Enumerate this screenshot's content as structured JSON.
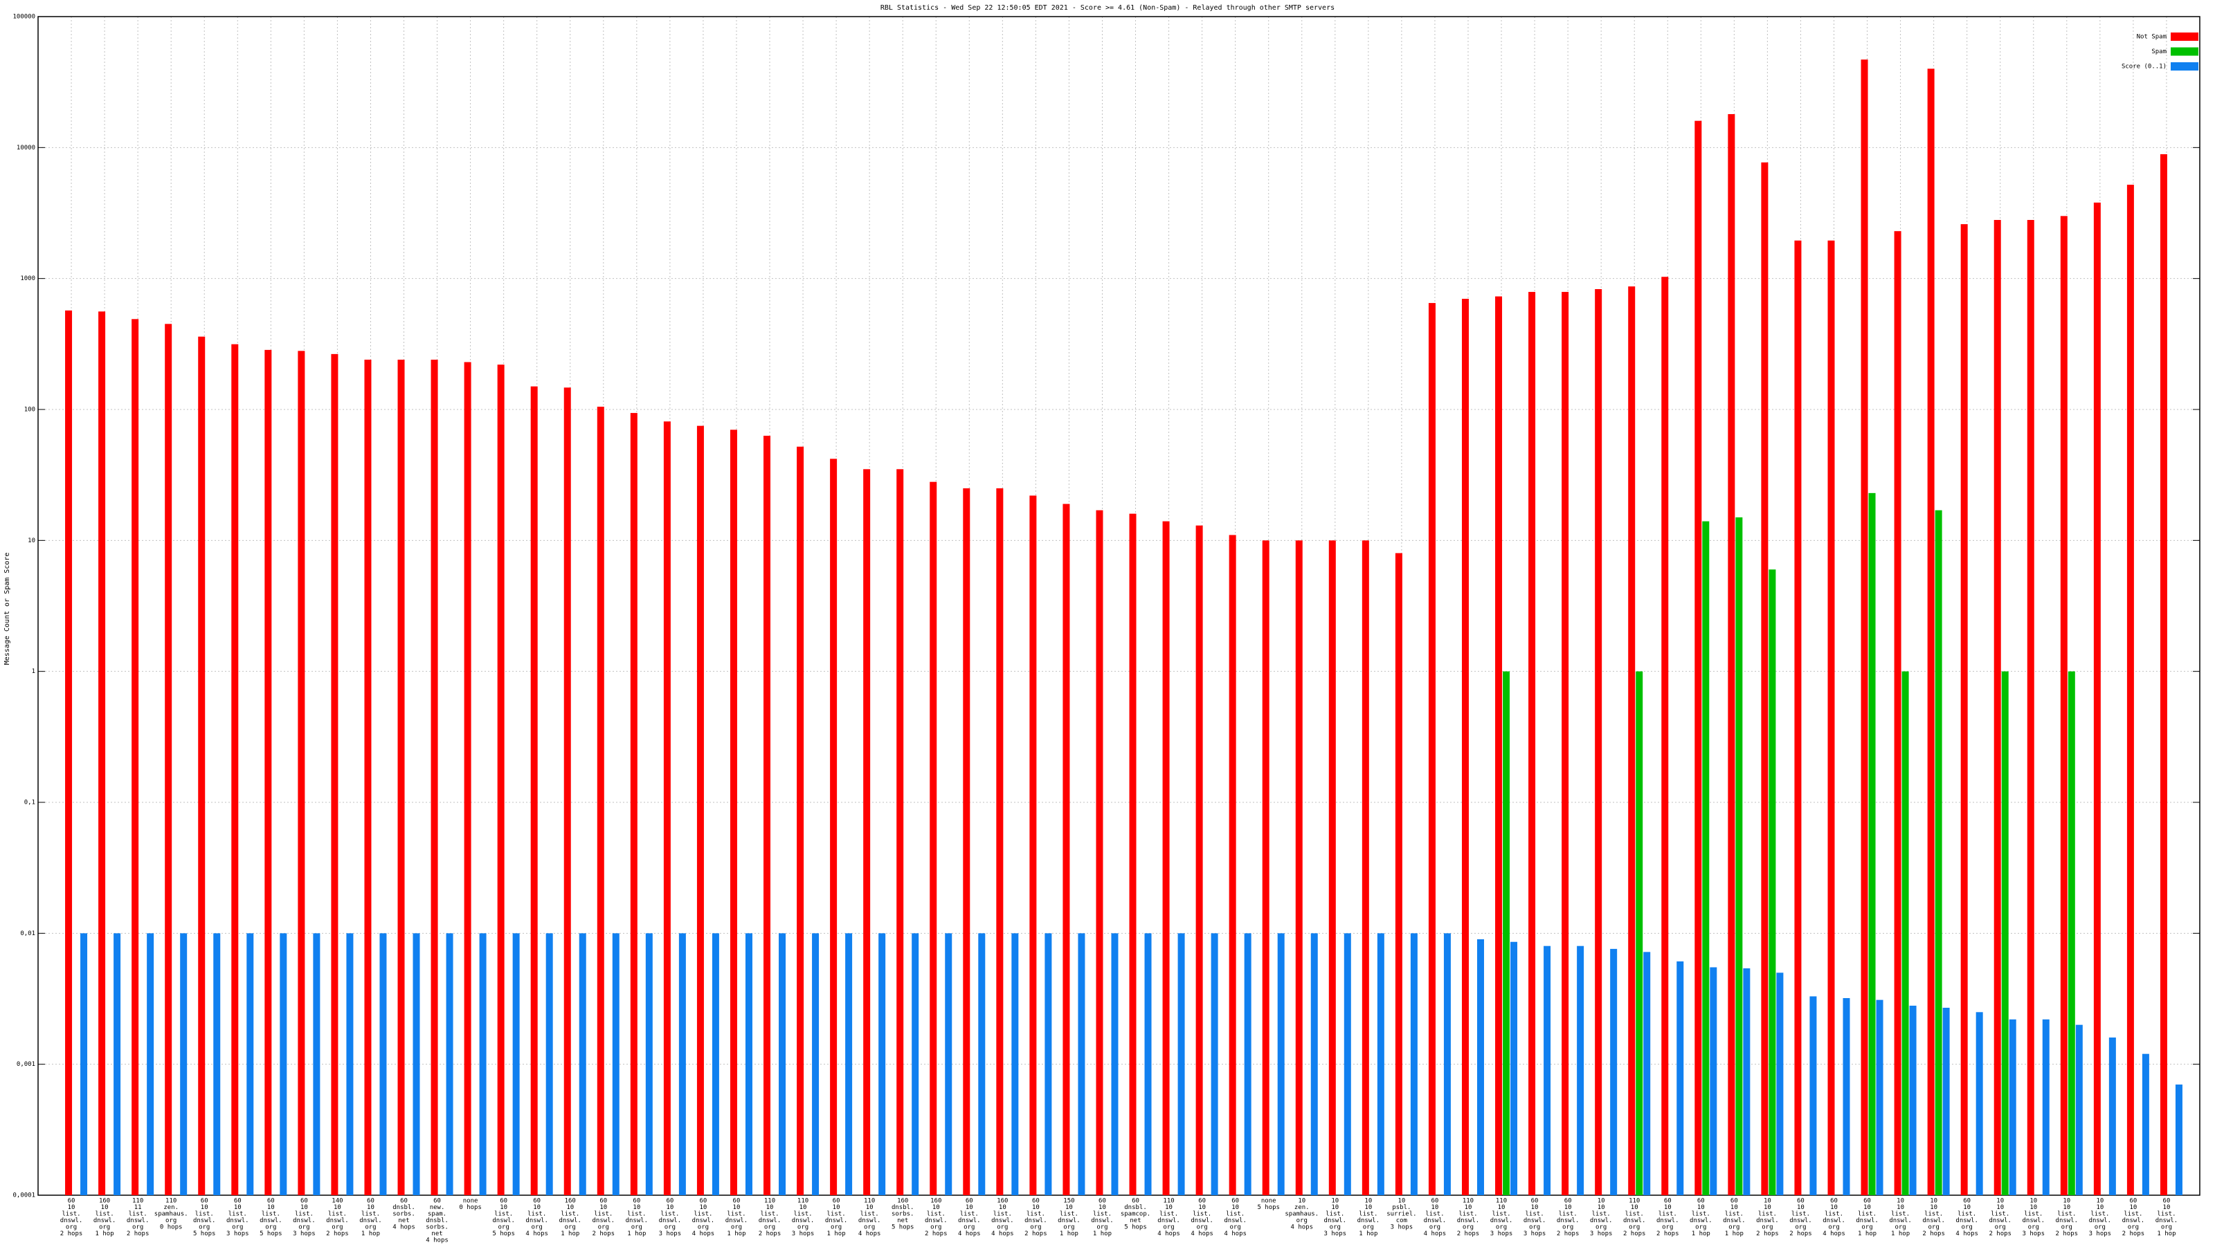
{
  "chart_data": {
    "type": "bar",
    "title": "RBL Statistics - Wed Sep 22 12:50:05 EDT 2021 - Score >= 4.61 (Non-Spam) - Relayed through other SMTP servers",
    "y_label": "Message Count or Spam Score",
    "log_scale": true,
    "grid": true,
    "legend": "top-right",
    "ylim": [
      0.0001,
      100000
    ],
    "yticks": [
      {
        "value": 0.0001,
        "label": "0,0001"
      },
      {
        "value": 0.001,
        "label": "0,001"
      },
      {
        "value": 0.01,
        "label": "0,01"
      },
      {
        "value": 0.1,
        "label": "0,1"
      },
      1,
      10,
      100,
      1000,
      10000,
      100000
    ],
    "categories": [
      "60\n10\nlist.\ndnswl.\norg\n2 hops",
      "160\n10\nlist.\ndnswl.\norg\n1 hop",
      "110\n11\nlist.\ndnswl.\norg\n2 hops",
      "110\nzen.\nspamhaus.\norg\n0 hops",
      "60\n10\nlist.\ndnswl.\norg\n5 hops",
      "60\n10\nlist.\ndnswl.\norg\n3 hops",
      "60\n10\nlist.\ndnswl.\norg\n5 hops",
      "60\n10\nlist.\ndnswl.\norg\n3 hops",
      "140\n10\nlist.\ndnswl.\norg\n2 hops",
      "60\n10\nlist.\ndnswl.\norg\n1 hop",
      "60\ndnsbl.\nsorbs.\nnet\n4 hops",
      "60\nnew.\nspam.\ndnsbl.\nsorbs.\nnet\n4 hops",
      "none\n0 hops",
      "60\n10\nlist.\ndnswl.\norg\n5 hops",
      "60\n10\nlist.\ndnswl.\norg\n4 hops",
      "160\n10\nlist.\ndnswl.\norg\n1 hop",
      "60\n10\nlist.\ndnswl.\norg\n2 hops",
      "60\n10\nlist.\ndnswl.\norg\n1 hop",
      "60\n10\nlist.\ndnswl.\norg\n3 hops",
      "60\n10\nlist.\ndnswl.\norg\n4 hops",
      "60\n10\nlist.\ndnswl.\norg\n1 hop",
      "110\n10\nlist.\ndnswl.\norg\n2 hops",
      "110\n10\nlist.\ndnswl.\norg\n3 hops",
      "60\n10\nlist.\ndnswl.\norg\n1 hop",
      "110\n10\nlist.\ndnswl.\norg\n4 hops",
      "160\ndnsbl.\nsorbs.\nnet\n5 hops",
      "160\n10\nlist.\ndnswl.\norg\n2 hops",
      "60\n10\nlist.\ndnswl.\norg\n4 hops",
      "160\n10\nlist.\ndnswl.\norg\n4 hops",
      "60\n10\nlist.\ndnswl.\norg\n2 hops",
      "150\n10\nlist.\ndnswl.\norg\n1 hop",
      "60\n10\nlist.\ndnswl.\norg\n1 hop",
      "60\ndnsbl.\nspamcop.\nnet\n5 hops",
      "110\n10\nlist.\ndnswl.\norg\n4 hops",
      "60\n10\nlist.\ndnswl.\norg\n4 hops",
      "60\n10\nlist.\ndnswl.\norg\n4 hops",
      "none\n5 hops",
      "10\nzen.\nspamhaus.\norg\n4 hops",
      "10\n10\nlist.\ndnswl.\norg\n3 hops",
      "10\n10\nlist.\ndnswl.\norg\n1 hop",
      "10\npsbl.\nsurriel.\ncom\n3 hops",
      "60\n10\nlist.\ndnswl.\norg\n4 hops",
      "110\n10\nlist.\ndnswl.\norg\n2 hops",
      "110\n10\nlist.\ndnswl.\norg\n3 hops",
      "60\n10\nlist.\ndnswl.\norg\n3 hops",
      "60\n10\nlist.\ndnswl.\norg\n2 hops",
      "10\n10\nlist.\ndnswl.\norg\n3 hops",
      "110\n10\nlist.\ndnswl.\norg\n2 hops",
      "60\n10\nlist.\ndnswl.\norg\n2 hops",
      "60\n10\nlist.\ndnswl.\norg\n1 hop",
      "60\n10\nlist.\ndnswl.\norg\n1 hop",
      "10\n10\nlist.\ndnswl.\norg\n2 hops",
      "60\n10\nlist.\ndnswl.\norg\n2 hops",
      "60\n10\nlist.\ndnswl.\norg\n4 hops",
      "60\n10\nlist.\ndnswl.\norg\n1 hop",
      "10\n10\nlist.\ndnswl.\norg\n1 hop",
      "10\n10\nlist.\ndnswl.\norg\n2 hops",
      "60\n10\nlist.\ndnswl.\norg\n4 hops",
      "10\n10\nlist.\ndnswl.\norg\n2 hops",
      "10\n10\nlist.\ndnswl.\norg\n3 hops",
      "10\n10\nlist.\ndnswl.\norg\n2 hops",
      "10\n10\nlist.\ndnswl.\norg\n3 hops",
      "60\n10\nlist.\ndnswl.\norg\n2 hops",
      "60\n10\nlist.\ndnswl.\norg\n1 hop"
    ],
    "series": [
      {
        "name": "Not Spam",
        "color": "#ff0000",
        "values": [
          570,
          560,
          490,
          450,
          360,
          315,
          285,
          280,
          265,
          240,
          240,
          240,
          230,
          220,
          150,
          147,
          105,
          94,
          81,
          75,
          70,
          63,
          52,
          42,
          35,
          35,
          28,
          25,
          25,
          22,
          19,
          17,
          16,
          14,
          13,
          11,
          10,
          10,
          10,
          10,
          8,
          650,
          700,
          730,
          790,
          790,
          830,
          870,
          1030,
          16000,
          18000,
          7700,
          1950,
          1950,
          47000,
          2300,
          40000,
          2600,
          2800,
          2800,
          3000,
          3800,
          5200,
          8900
        ]
      },
      {
        "name": "Spam",
        "color": "#00c000",
        "values": [
          null,
          null,
          null,
          null,
          null,
          null,
          null,
          null,
          null,
          null,
          null,
          null,
          null,
          null,
          null,
          null,
          null,
          null,
          null,
          null,
          null,
          null,
          null,
          null,
          null,
          null,
          null,
          null,
          null,
          null,
          null,
          null,
          null,
          null,
          null,
          null,
          null,
          null,
          null,
          null,
          null,
          null,
          null,
          1,
          null,
          null,
          null,
          1,
          null,
          14,
          15,
          6,
          null,
          null,
          23,
          1,
          17,
          null,
          1,
          null,
          1,
          null,
          null,
          null
        ]
      },
      {
        "name": "Score (0..1)",
        "color": "#1080f0",
        "values": [
          0.01,
          0.01,
          0.01,
          0.01,
          0.01,
          0.01,
          0.01,
          0.01,
          0.01,
          0.01,
          0.01,
          0.01,
          0.01,
          0.01,
          0.01,
          0.01,
          0.01,
          0.01,
          0.01,
          0.01,
          0.01,
          0.01,
          0.01,
          0.01,
          0.01,
          0.01,
          0.01,
          0.01,
          0.01,
          0.01,
          0.01,
          0.01,
          0.01,
          0.01,
          0.01,
          0.01,
          0.01,
          0.01,
          0.01,
          0.01,
          0.01,
          0.01,
          0.009,
          0.0086,
          0.008,
          0.008,
          0.0076,
          0.0072,
          0.0061,
          0.0055,
          0.0054,
          0.005,
          0.0033,
          0.0032,
          0.0031,
          0.0028,
          0.0027,
          0.0025,
          0.0022,
          0.0022,
          0.002,
          0.0016,
          0.0012,
          0.0007
        ]
      }
    ]
  }
}
